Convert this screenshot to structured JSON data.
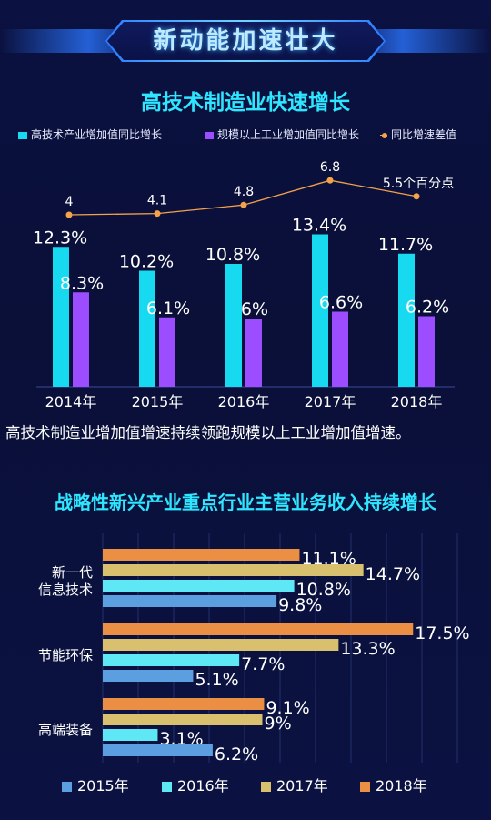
{
  "banner": {
    "title": "新动能加速壮大"
  },
  "chart1": {
    "title": "高技术制造业快速增长",
    "note": "高技术制造业增加值增速持续领跑规模以上工业增加值增速。"
  },
  "chart2": {
    "title": "战略性新兴产业重点行业主营业务收入持续增长"
  },
  "colors": {
    "cyan": "#17d9f0",
    "purple": "#9b4dff",
    "orange_line": "#f5a34a",
    "y2015": "#5b9fe0",
    "y2016": "#5ee8f5",
    "y2017": "#d8c06e",
    "y2018": "#eb8f45"
  },
  "chart_data": [
    {
      "type": "bar",
      "title": "高技术制造业快速增长",
      "categories": [
        "2014年",
        "2015年",
        "2016年",
        "2017年",
        "2018年"
      ],
      "series": [
        {
          "name": "高技术产业增加值同比增长",
          "values": [
            12.3,
            10.2,
            10.8,
            13.4,
            11.7
          ],
          "labels": [
            "12.3%",
            "10.2%",
            "10.8%",
            "13.4%",
            "11.7%"
          ]
        },
        {
          "name": "规模以上工业增加值同比增长",
          "values": [
            8.3,
            6.1,
            6,
            6.6,
            6.2
          ],
          "labels": [
            "8.3%",
            "6.1%",
            "6%",
            "6.6%",
            "6.2%"
          ]
        }
      ],
      "line": {
        "name": "同比增速差值",
        "values": [
          4,
          4.1,
          4.8,
          6.8,
          5.5
        ],
        "labels": [
          "4",
          "4.1",
          "4.8",
          "6.8",
          "5.5个百分点"
        ]
      },
      "ylim": [
        0,
        15
      ],
      "legend_position": "top"
    },
    {
      "type": "bar",
      "orientation": "horizontal",
      "title": "战略性新兴产业重点行业主营业务收入持续增长",
      "categories": [
        "新一代\n信息技术",
        "节能环保",
        "高端装备"
      ],
      "series": [
        {
          "name": "2018年",
          "values": [
            11.1,
            17.5,
            9.1
          ],
          "labels": [
            "11.1%",
            "17.5%",
            "9.1%"
          ]
        },
        {
          "name": "2017年",
          "values": [
            14.7,
            13.3,
            9
          ],
          "labels": [
            "14.7%",
            "13.3%",
            "9%"
          ]
        },
        {
          "name": "2016年",
          "values": [
            10.8,
            7.7,
            3.1
          ],
          "labels": [
            "10.8%",
            "7.7%",
            "3.1%"
          ]
        },
        {
          "name": "2015年",
          "values": [
            9.8,
            5.1,
            6.2
          ],
          "labels": [
            "9.8%",
            "5.1%",
            "6.2%"
          ]
        }
      ],
      "legend_order": [
        "2015年",
        "2016年",
        "2017年",
        "2018年"
      ],
      "xlim": [
        0,
        20
      ],
      "grid": true,
      "legend_position": "bottom"
    }
  ]
}
